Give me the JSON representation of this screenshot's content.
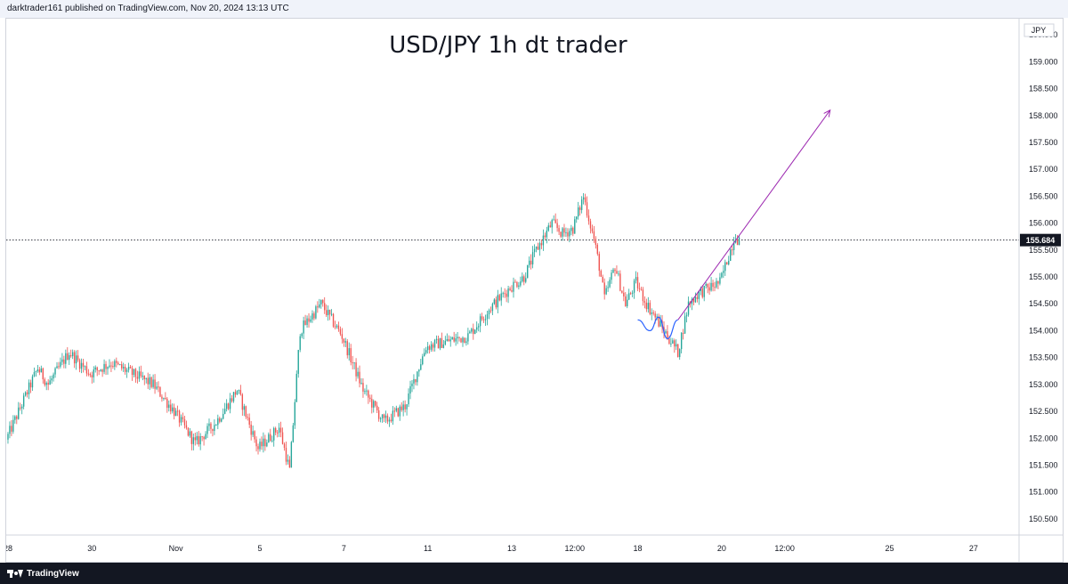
{
  "header": {
    "attribution": "darktrader161 published on TradingView.com, Nov 20, 2024 13:13 UTC"
  },
  "footer": {
    "brand": "TradingView"
  },
  "colors": {
    "up": "#26a69a",
    "down": "#ef5350",
    "wick": "#5d606b",
    "arrow": "#9c27b0",
    "curve": "#2962ff",
    "price_label_bg": "#131722",
    "bar_background": "#f0f3fa",
    "footer_background": "#131722"
  },
  "chart_data": {
    "type": "candlestick",
    "title": "USD/JPY 1h  dt trader",
    "currency_label": "JPY",
    "current_price": 155.684,
    "current_price_label": "155.684",
    "ylim": [
      150.2,
      159.8
    ],
    "y_ticks": [
      "150.500",
      "151.000",
      "151.500",
      "152.000",
      "152.500",
      "153.000",
      "153.500",
      "154.000",
      "154.500",
      "155.000",
      "155.500",
      "156.000",
      "156.500",
      "157.000",
      "157.500",
      "158.000",
      "158.500",
      "159.000",
      "159.500"
    ],
    "y_tick_values": [
      150.5,
      151,
      151.5,
      152,
      152.5,
      153,
      153.5,
      154,
      154.5,
      155,
      155.5,
      156,
      156.5,
      157,
      157.5,
      158,
      158.5,
      159,
      159.5
    ],
    "x_ticks": [
      "28",
      "30",
      "Nov",
      "5",
      "7",
      "11",
      "13",
      "12:00",
      "18",
      "20",
      "12:00",
      "25",
      "27"
    ],
    "x_tick_hours": [
      0,
      48,
      96,
      144,
      192,
      240,
      288,
      324,
      360,
      408,
      444,
      504,
      552
    ],
    "xlim_hours": [
      -1,
      578
    ],
    "price_path_hours": [
      -1,
      18,
      24,
      36,
      48,
      60,
      72,
      84,
      96,
      108,
      120,
      132,
      144,
      156,
      162,
      168,
      180,
      192,
      204,
      216,
      228,
      240,
      252,
      264,
      276,
      288,
      296,
      303,
      312,
      318,
      324,
      330,
      336,
      339,
      342,
      348,
      354,
      360,
      366,
      372,
      384,
      390,
      396,
      408,
      417,
      418
    ],
    "price_path_values": [
      151.9,
      153.3,
      153.0,
      153.6,
      153.2,
      153.4,
      153.2,
      153.0,
      152.5,
      151.9,
      152.3,
      152.9,
      151.8,
      152.2,
      151.4,
      154.0,
      154.5,
      153.9,
      152.9,
      152.3,
      152.6,
      153.7,
      153.8,
      153.9,
      154.4,
      154.8,
      155.0,
      155.5,
      156.0,
      155.8,
      155.9,
      156.5,
      155.7,
      155.2,
      154.6,
      155.2,
      154.5,
      154.9,
      154.5,
      154.2,
      153.6,
      154.5,
      154.7,
      154.9,
      155.8,
      155.7
    ],
    "projection": {
      "type": "arrow",
      "from": {
        "hour": 383,
        "price": 154.2
      },
      "to": {
        "hour": 470,
        "price": 158.1
      }
    },
    "annotation_curve": {
      "hours": [
        360,
        367,
        372,
        377,
        383
      ],
      "prices": [
        154.2,
        154.0,
        154.25,
        153.85,
        154.2
      ]
    }
  }
}
